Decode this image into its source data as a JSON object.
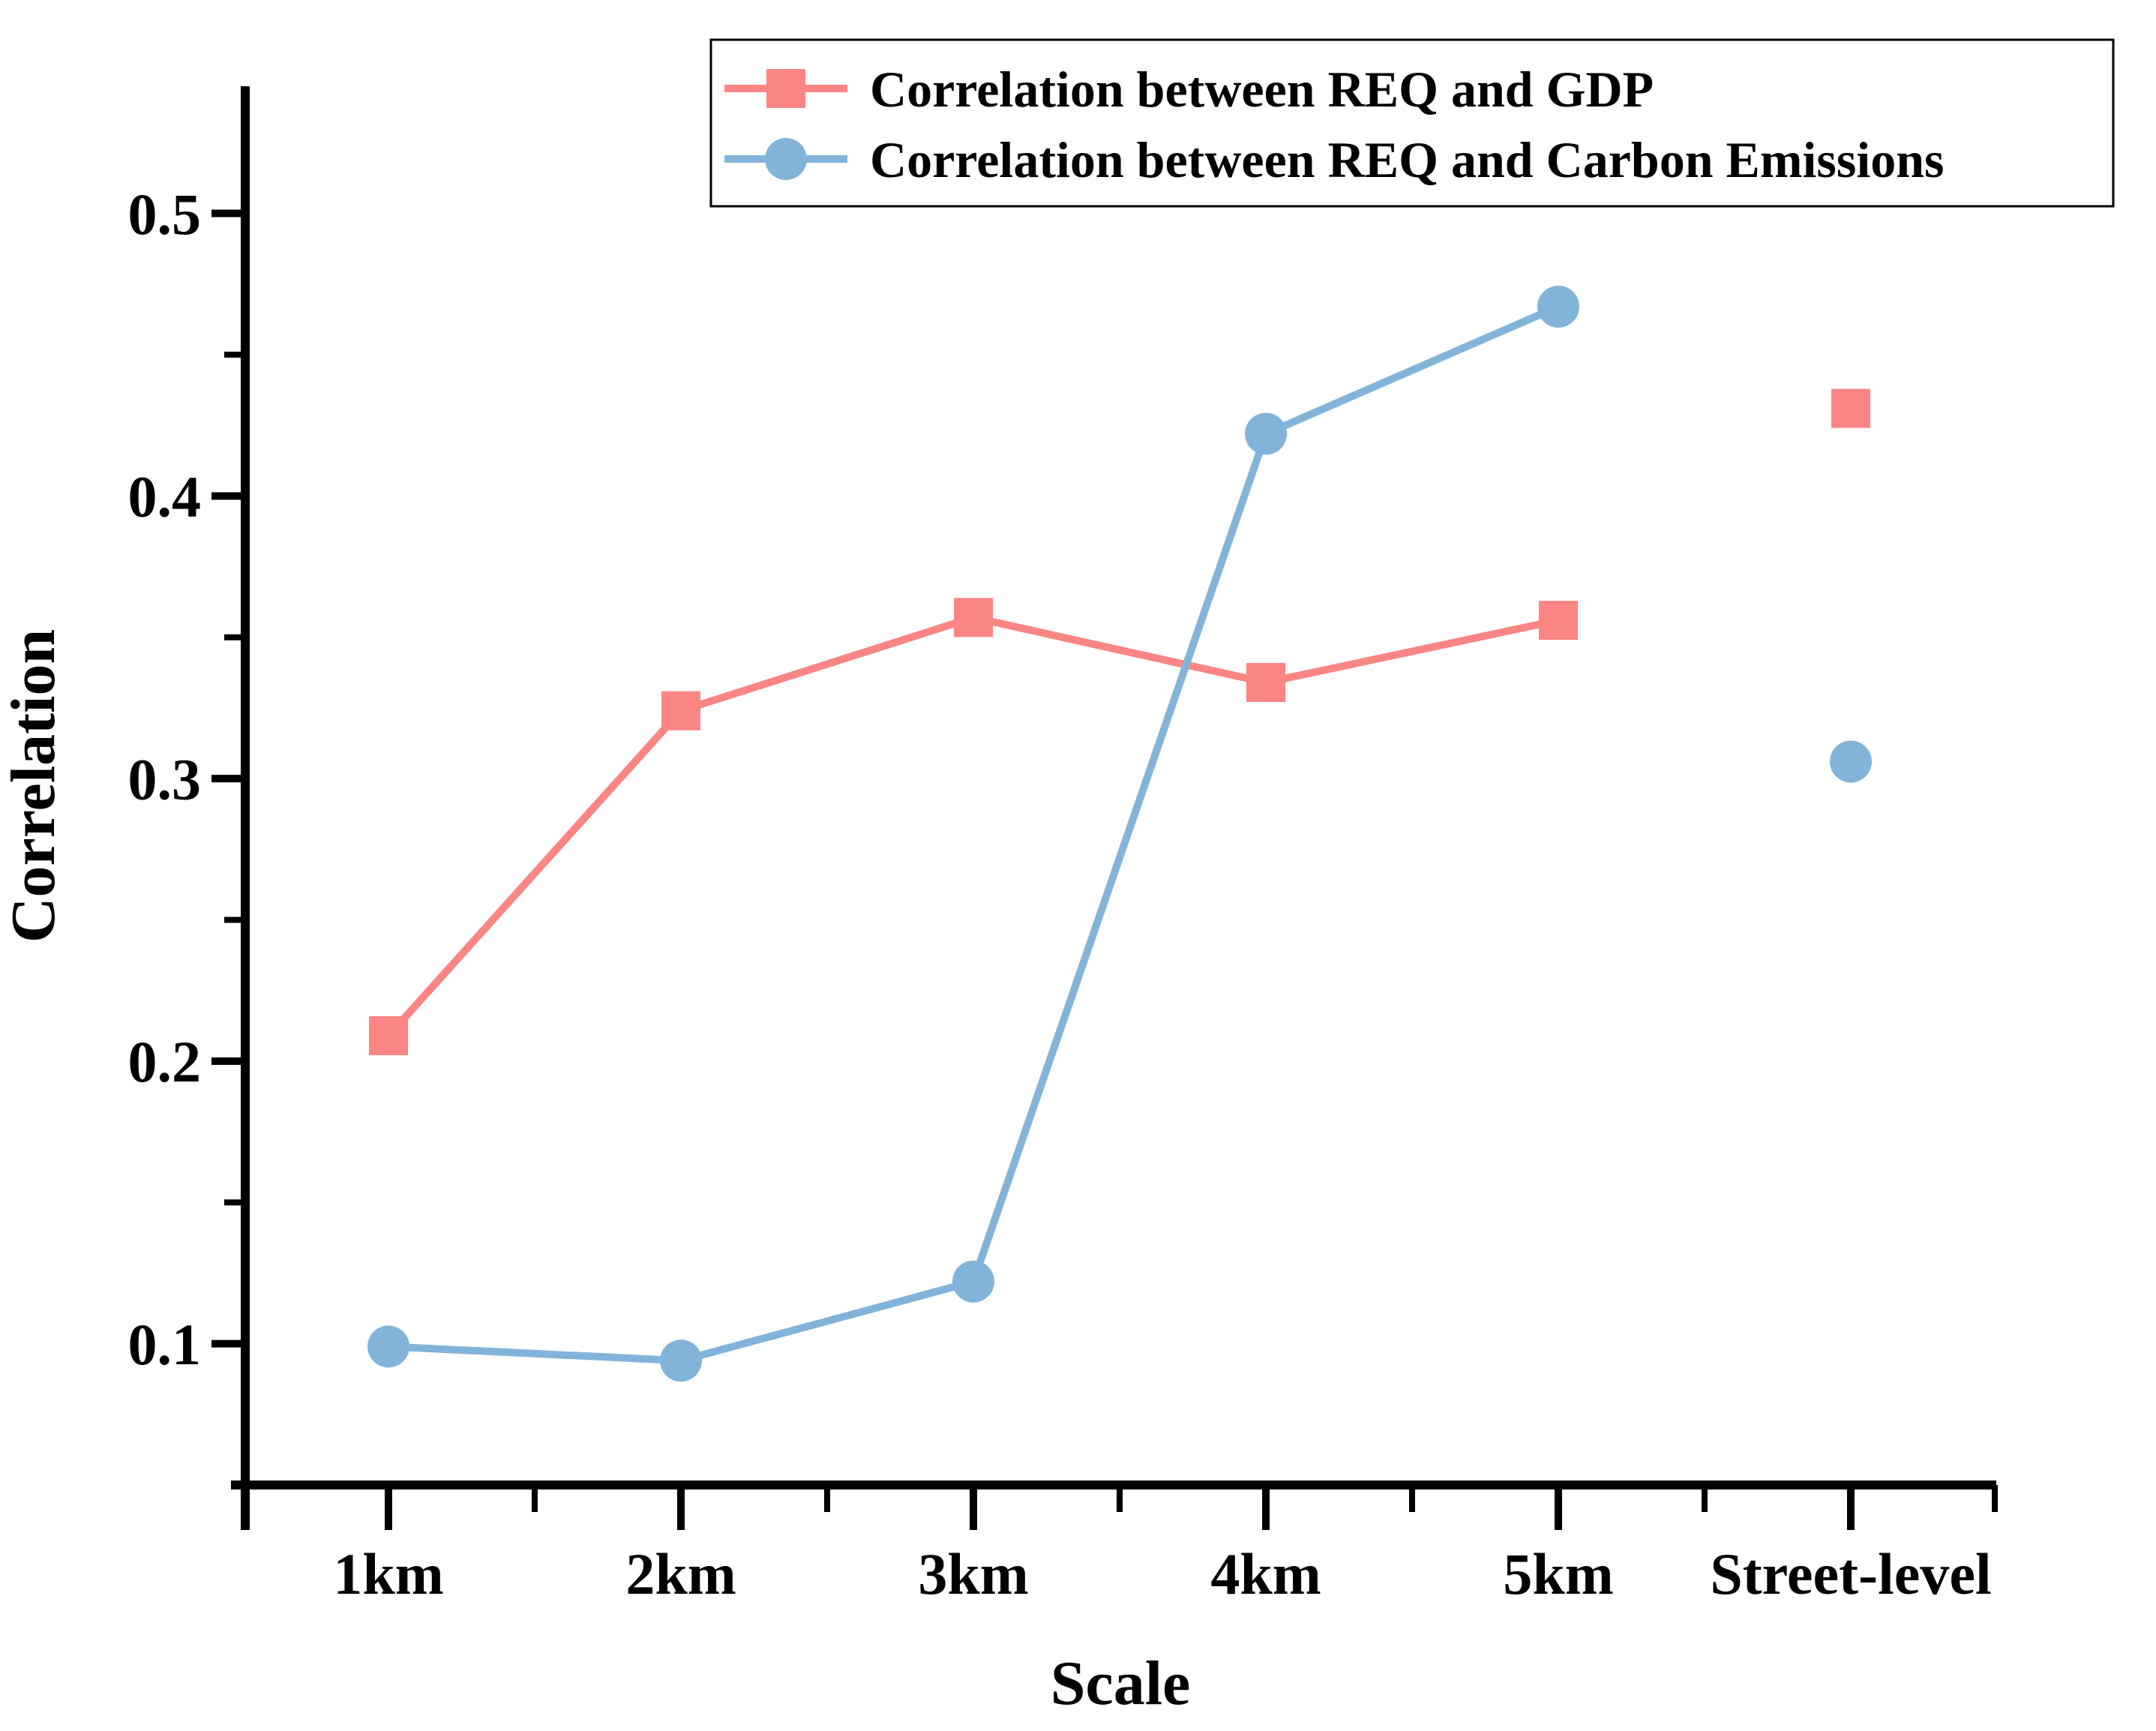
{
  "figure": {
    "background": "#ffffff",
    "axis_color": "#000000"
  },
  "chart_data": {
    "type": "line",
    "title": "",
    "xlabel": "Scale",
    "ylabel": "Correlation",
    "categories": [
      "1km",
      "2km",
      "3km",
      "4km",
      "5km",
      "Street-level"
    ],
    "y_ticks": [
      "0.5",
      "0.4",
      "0.3",
      "0.2",
      "0.1"
    ],
    "y_tick_values": [
      0.5,
      0.4,
      0.3,
      0.2,
      0.1
    ],
    "y_minor_tick_values": [
      0.45,
      0.35,
      0.25,
      0.15
    ],
    "ylim": [
      0.05,
      0.545
    ],
    "grid": false,
    "legend_position": "top",
    "note_last_point_isolated": true,
    "series": [
      {
        "name": "Correlation between REQ and GDP",
        "marker": "square",
        "color": "#FB8583",
        "values": [
          0.209,
          0.324,
          0.357,
          0.334,
          0.356,
          0.431
        ],
        "connected_through_index": 4
      },
      {
        "name": "Correlation between REQ and Carbon Emissions",
        "marker": "circle",
        "color": "#82B4DA",
        "values": [
          0.099,
          0.094,
          0.122,
          0.422,
          0.467,
          0.306
        ],
        "connected_through_index": 4
      }
    ]
  }
}
